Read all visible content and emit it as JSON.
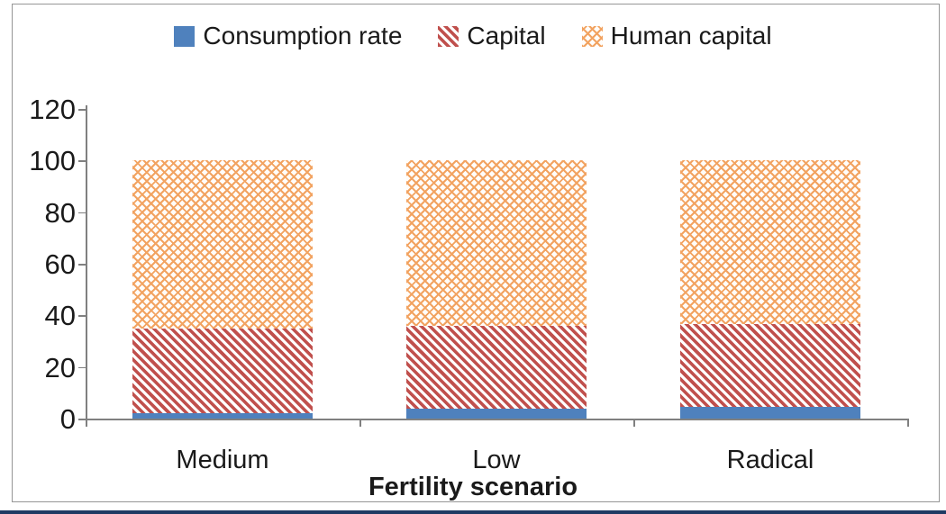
{
  "chart": {
    "legend": [
      {
        "label": "Consumption rate",
        "swatch": "solid-blue"
      },
      {
        "label": "Capital",
        "swatch": "red-diagonal-hatch"
      },
      {
        "label": "Human capital",
        "swatch": "orange-dotted-lattice"
      }
    ],
    "x_axis_title": "Fertility scenario",
    "y_tick_labels": [
      "0",
      "20",
      "40",
      "60",
      "80",
      "100",
      "120"
    ]
  },
  "chart_data": {
    "type": "bar",
    "stacked": true,
    "categories": [
      "Medium",
      "Low",
      "Radical"
    ],
    "series": [
      {
        "name": "Consumption rate",
        "values": [
          2,
          4,
          4.5
        ]
      },
      {
        "name": "Capital",
        "values": [
          33,
          32,
          32
        ]
      },
      {
        "name": "Human capital",
        "values": [
          65,
          64,
          63.5
        ]
      }
    ],
    "title": "",
    "xlabel": "Fertility scenario",
    "ylabel": "",
    "ylim": [
      0,
      120
    ],
    "y_ticks": [
      0,
      20,
      40,
      60,
      80,
      100,
      120
    ],
    "grid": false,
    "legend_position": "top"
  },
  "colors": {
    "consumption_rate": "#4f81bd",
    "capital": "#c0504d",
    "human_capital": "#f2a361",
    "axis": "#808080",
    "text": "#1a1a1a",
    "bottom_edge": "#1f3a63"
  }
}
